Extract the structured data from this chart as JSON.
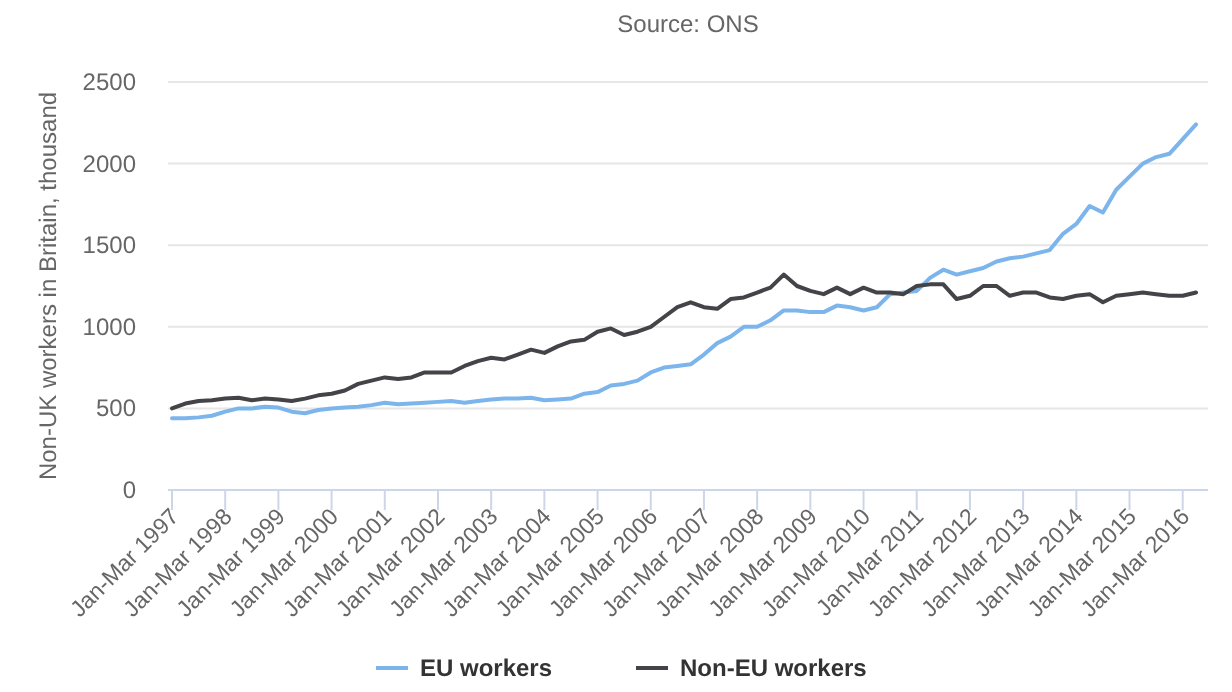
{
  "chart_data": {
    "type": "line",
    "annotations": [
      "Source: ONS"
    ],
    "ylabel": "Non-UK workers in Britain, thousand",
    "categories": [
      "Jan-Mar 1997",
      null,
      null,
      null,
      "Jan-Mar 1998",
      null,
      null,
      null,
      "Jan-Mar 1999",
      null,
      null,
      null,
      "Jan-Mar 2000",
      null,
      null,
      null,
      "Jan-Mar 2001",
      null,
      null,
      null,
      "Jan-Mar 2002",
      null,
      null,
      null,
      "Jan-Mar 2003",
      null,
      null,
      null,
      "Jan-Mar 2004",
      null,
      null,
      null,
      "Jan-Mar 2005",
      null,
      null,
      null,
      "Jan-Mar 2006",
      null,
      null,
      null,
      "Jan-Mar 2007",
      null,
      null,
      null,
      "Jan-Mar 2008",
      null,
      null,
      null,
      "Jan-Mar 2009",
      null,
      null,
      null,
      "Jan-Mar 2010",
      null,
      null,
      null,
      "Jan-Mar 2011",
      null,
      null,
      null,
      "Jan-Mar 2012",
      null,
      null,
      null,
      "Jan-Mar 2013",
      null,
      null,
      null,
      "Jan-Mar 2014",
      null,
      null,
      null,
      "Jan-Mar 2015",
      null,
      null,
      null,
      "Jan-Mar 2016",
      null
    ],
    "series": [
      {
        "name": "EU workers",
        "color": "#7cb5ec",
        "values": [
          440,
          440,
          445,
          455,
          480,
          500,
          500,
          510,
          505,
          480,
          470,
          490,
          500,
          505,
          510,
          520,
          535,
          525,
          530,
          535,
          540,
          545,
          535,
          545,
          555,
          560,
          560,
          565,
          550,
          555,
          560,
          590,
          600,
          640,
          650,
          670,
          720,
          750,
          760,
          770,
          830,
          900,
          940,
          1000,
          1000,
          1040,
          1100,
          1100,
          1090,
          1090,
          1130,
          1120,
          1100,
          1120,
          1200,
          1210,
          1220,
          1300,
          1350,
          1320,
          1340,
          1360,
          1400,
          1420,
          1430,
          1450,
          1470,
          1570,
          1630,
          1740,
          1700,
          1840,
          1920,
          2000,
          2040,
          2060,
          2150,
          2240
        ]
      },
      {
        "name": "Non-EU workers",
        "color": "#434348",
        "values": [
          500,
          530,
          545,
          550,
          560,
          565,
          550,
          560,
          555,
          545,
          560,
          580,
          590,
          610,
          650,
          670,
          690,
          680,
          690,
          720,
          720,
          720,
          760,
          790,
          810,
          800,
          830,
          860,
          840,
          880,
          910,
          920,
          970,
          990,
          950,
          970,
          1000,
          1060,
          1120,
          1150,
          1120,
          1110,
          1170,
          1180,
          1210,
          1240,
          1320,
          1250,
          1220,
          1200,
          1240,
          1200,
          1240,
          1210,
          1210,
          1200,
          1250,
          1260,
          1260,
          1170,
          1190,
          1250,
          1250,
          1190,
          1210,
          1210,
          1180,
          1170,
          1190,
          1200,
          1150,
          1190,
          1200,
          1210,
          1200,
          1190,
          1190,
          1210
        ]
      }
    ],
    "ylim": [
      0,
      2500
    ],
    "yticks": [
      0,
      500,
      1000,
      1500,
      2000,
      2500
    ],
    "grid": "y",
    "legend": "bottom"
  }
}
